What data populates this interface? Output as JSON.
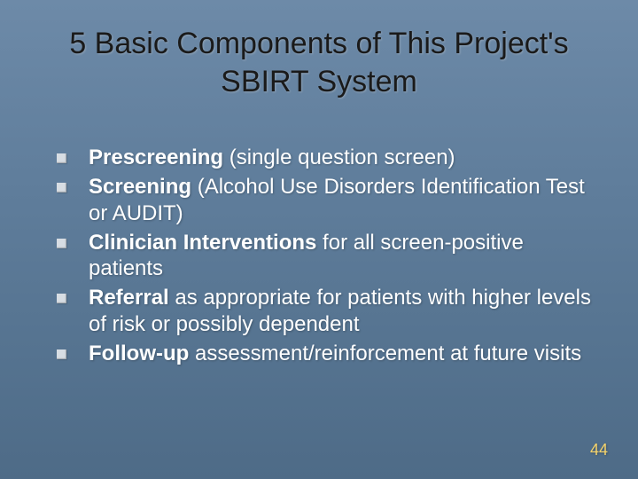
{
  "slide": {
    "background_gradient": [
      "#6d8aa8",
      "#5f7d9b",
      "#567491",
      "#4e6b87"
    ],
    "title": "5 Basic Components of This Project's SBIRT System",
    "title_color": "#1a1a1a",
    "title_fontsize": 34,
    "bullet_marker_color": "#d7dde3",
    "bullet_text_color": "#ffffff",
    "bullet_fontsize": 24,
    "bullets": [
      {
        "bold": "Prescreening",
        "rest": " (single question screen)"
      },
      {
        "bold": "Screening",
        "rest": " (Alcohol Use Disorders Identification Test or AUDIT)"
      },
      {
        "bold": "Clinician Interventions",
        "rest": " for all screen-positive patients"
      },
      {
        "bold": "Referral",
        "rest": " as appropriate for patients with higher levels of risk or possibly dependent"
      },
      {
        "bold": "Follow-up",
        "rest": " assessment/reinforcement at future visits"
      }
    ],
    "slide_number": "44",
    "slide_number_color": "#f5d36b"
  }
}
